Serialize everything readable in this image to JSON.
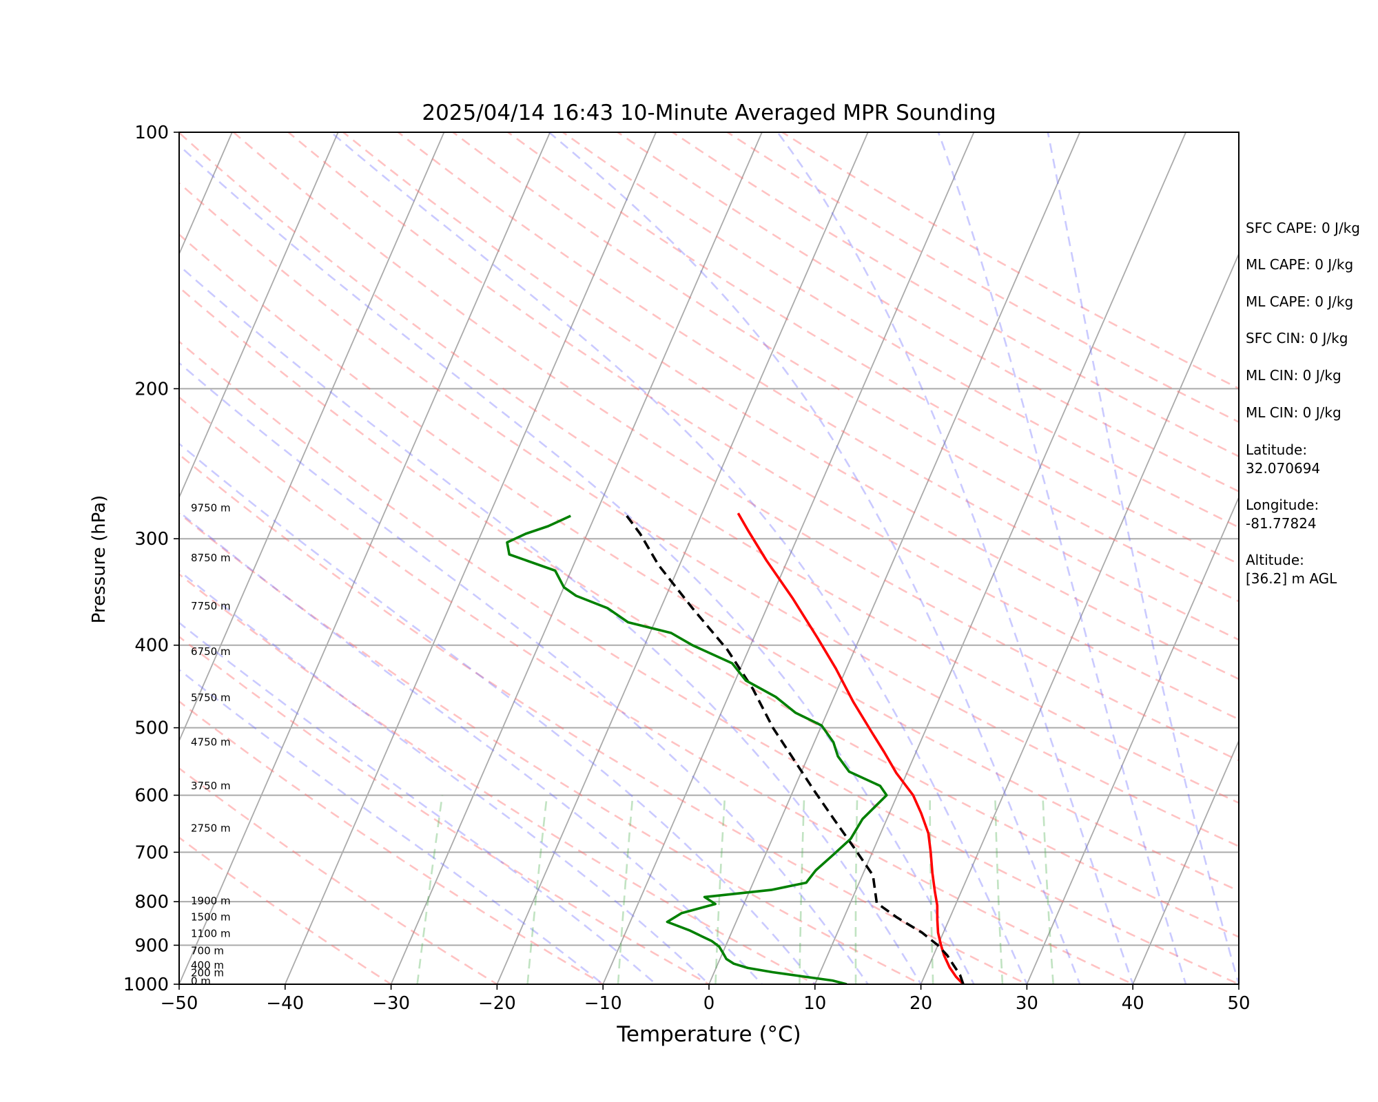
{
  "chart_data": {
    "type": "line",
    "title": "2025/04/14 16:43 10-Minute Averaged MPR Sounding",
    "xlabel": "Temperature (°C)",
    "ylabel": "Pressure (hPa)",
    "xlim": [
      -50,
      50
    ],
    "ylim": [
      1000,
      100
    ],
    "y_scale": "log",
    "x_ticks": [
      "−50",
      "−40",
      "−30",
      "−20",
      "−10",
      "0",
      "10",
      "20",
      "30",
      "40",
      "50"
    ],
    "y_ticks": [
      "100",
      "200",
      "300",
      "400",
      "500",
      "600",
      "700",
      "800",
      "900",
      "1000"
    ],
    "grid_isobars": true,
    "skewed_isotherms": true,
    "series": [
      {
        "color": "#ff0000",
        "points": [
          [
            -16.6,
            280
          ],
          [
            -15,
            293
          ],
          [
            -12,
            318
          ],
          [
            -8,
            352
          ],
          [
            -4,
            392
          ],
          [
            -1,
            426
          ],
          [
            2,
            466
          ],
          [
            5,
            506
          ],
          [
            7,
            534
          ],
          [
            9,
            565
          ],
          [
            11.5,
            600
          ],
          [
            13,
            630
          ],
          [
            14.5,
            665
          ],
          [
            15.5,
            700
          ],
          [
            16.5,
            740
          ],
          [
            17.5,
            778
          ],
          [
            18.3,
            808
          ],
          [
            18.9,
            840
          ],
          [
            19.5,
            870
          ],
          [
            20.3,
            900
          ],
          [
            21,
            925
          ],
          [
            22,
            955
          ],
          [
            23,
            980
          ],
          [
            24,
            1000
          ]
        ]
      },
      {
        "color": "#000000",
        "points": [
          [
            -27,
            282
          ],
          [
            -25,
            296
          ],
          [
            -22,
            322
          ],
          [
            -17,
            362
          ],
          [
            -12,
            405
          ],
          [
            -8,
            450
          ],
          [
            -4.5,
            500
          ],
          [
            -1,
            548
          ],
          [
            2,
            593
          ],
          [
            5,
            640
          ],
          [
            8,
            690
          ],
          [
            11,
            745
          ],
          [
            12.5,
            803
          ],
          [
            15,
            835
          ],
          [
            18,
            870
          ],
          [
            20,
            900
          ],
          [
            21.3,
            925
          ],
          [
            22.3,
            950
          ],
          [
            23.3,
            975
          ],
          [
            24,
            1000
          ]
        ]
      },
      {
        "color": "#008000",
        "points": [
          [
            -32.3,
            282
          ],
          [
            -34,
            290
          ],
          [
            -35.8,
            296
          ],
          [
            -37.2,
            303
          ],
          [
            -36.5,
            313
          ],
          [
            -31.5,
            327
          ],
          [
            -30,
            342
          ],
          [
            -28.5,
            350
          ],
          [
            -25,
            362
          ],
          [
            -22.5,
            376
          ],
          [
            -18,
            387
          ],
          [
            -15.5,
            400
          ],
          [
            -11,
            420
          ],
          [
            -9,
            440
          ],
          [
            -5.5,
            460
          ],
          [
            -3,
            480
          ],
          [
            0,
            497
          ],
          [
            1.8,
            520
          ],
          [
            2.8,
            540
          ],
          [
            4.5,
            563
          ],
          [
            8,
            585
          ],
          [
            9,
            600
          ],
          [
            8.5,
            615
          ],
          [
            7.7,
            640
          ],
          [
            7.4,
            675
          ],
          [
            6.4,
            705
          ],
          [
            5.4,
            735
          ],
          [
            5,
            760
          ],
          [
            2,
            775
          ],
          [
            -4,
            790
          ],
          [
            -2.7,
            805
          ],
          [
            -5.5,
            825
          ],
          [
            -6.5,
            845
          ],
          [
            -4,
            865
          ],
          [
            -3,
            875
          ],
          [
            -1.5,
            890
          ],
          [
            -0.6,
            903
          ],
          [
            0,
            918
          ],
          [
            0.6,
            934
          ],
          [
            1.5,
            946
          ],
          [
            3,
            957
          ],
          [
            5.5,
            968
          ],
          [
            8.5,
            979
          ],
          [
            11.5,
            990
          ],
          [
            13,
            1000
          ]
        ]
      }
    ],
    "height_labels": [
      "9750 m",
      "8750 m",
      "7750 m",
      "6750 m",
      "5750 m",
      "4750 m",
      "3750 m",
      "2750 m",
      "1900 m",
      "1500 m",
      "1100 m",
      "700 m",
      "400 m",
      "200 m",
      "0 m"
    ],
    "height_label_pressures": [
      276,
      316,
      360,
      407,
      461,
      520,
      585,
      656,
      798,
      834,
      872,
      914,
      950,
      970,
      992
    ]
  },
  "side_panel": {
    "sfc_cape": "SFC CAPE: 0 J/kg",
    "ml_cape_1": "ML CAPE: 0 J/kg",
    "ml_cape_2": "ML CAPE: 0 J/kg",
    "sfc_cin": "SFC CIN: 0 J/kg",
    "ml_cin_1": "ML CIN: 0 J/kg",
    "ml_cin_2": "ML CIN: 0 J/kg",
    "latitude": "Latitude:\n32.070694",
    "longitude": "Longitude:\n-81.77824",
    "altitude": "Altitude:\n[36.2] m AGL"
  }
}
